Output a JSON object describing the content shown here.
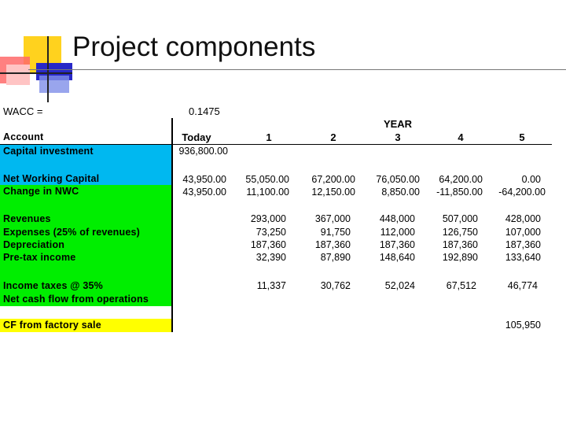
{
  "slide": {
    "title": "Project components",
    "wacc_label": "WACC =",
    "wacc_value": "0.1475"
  },
  "table": {
    "year_header": "YEAR",
    "account_header": "Account",
    "columns": [
      "Today",
      "1",
      "2",
      "3",
      "4",
      "5"
    ],
    "rows": [
      {
        "label": "Capital investment",
        "values": [
          "936,800.00",
          "",
          "",
          "",
          "",
          ""
        ]
      },
      {
        "label": "Net Working Capital",
        "values": [
          "43,950.00",
          "55,050.00",
          "67,200.00",
          "76,050.00",
          "64,200.00",
          "0.00"
        ]
      },
      {
        "label": "Change in NWC",
        "values": [
          "43,950.00",
          "11,100.00",
          "12,150.00",
          "8,850.00",
          "-11,850.00",
          "-64,200.00"
        ]
      },
      {
        "label": "Revenues",
        "values": [
          "",
          "293,000",
          "367,000",
          "448,000",
          "507,000",
          "428,000"
        ]
      },
      {
        "label": "Expenses (25% of revenues)",
        "values": [
          "",
          "73,250",
          "91,750",
          "112,000",
          "126,750",
          "107,000"
        ]
      },
      {
        "label": "Depreciation",
        "values": [
          "",
          "187,360",
          "187,360",
          "187,360",
          "187,360",
          "187,360"
        ]
      },
      {
        "label": "Pre-tax income",
        "values": [
          "",
          "32,390",
          "87,890",
          "148,640",
          "192,890",
          "133,640"
        ]
      },
      {
        "label": "Income taxes @ 35%",
        "values": [
          "",
          "11,337",
          "30,762",
          "52,024",
          "67,512",
          "46,774"
        ]
      },
      {
        "label": "Net cash flow from operations",
        "values": [
          "",
          "",
          "",
          "",
          "",
          ""
        ]
      },
      {
        "label": "CF from factory sale",
        "values": [
          "",
          "",
          "",
          "",
          "",
          "105,950"
        ]
      }
    ]
  },
  "colors": {
    "band_blue": "#00b8f0",
    "band_green": "#00ee00",
    "band_yellow": "#ffff00",
    "deco_yellow": "#ffd21e",
    "deco_blue": "#2020d0",
    "deco_red": "#ff5050"
  }
}
